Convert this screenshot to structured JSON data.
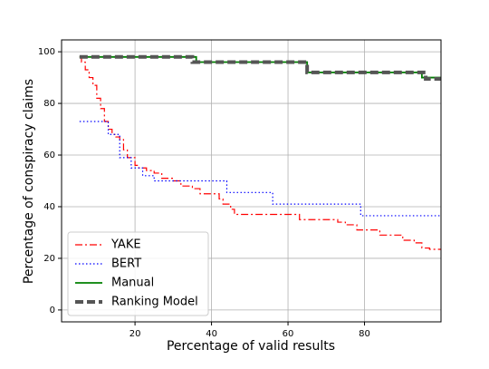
{
  "chart_data": {
    "type": "line",
    "step": true,
    "xlabel": "Percentage of valid results",
    "ylabel": "Percentage of conspiracy claims",
    "xlim": [
      0.8,
      100
    ],
    "ylim": [
      -4.6,
      104.6
    ],
    "xticks": [
      20,
      40,
      60,
      80
    ],
    "yticks": [
      0,
      20,
      40,
      60,
      80,
      100
    ],
    "grid": true,
    "legend": "lower left",
    "series": [
      {
        "name": "YAKE",
        "color": "#ff0000",
        "style": "dashdot",
        "width": 1.2,
        "x": [
          5.5,
          6,
          7,
          8,
          9,
          10,
          11,
          12,
          13,
          14,
          15,
          16,
          17,
          18,
          20,
          21,
          23,
          25,
          27,
          30,
          32,
          35,
          37,
          42,
          43,
          45,
          46,
          63,
          73,
          75,
          78,
          84,
          90,
          93,
          95,
          97,
          100
        ],
        "values": [
          98,
          96,
          93,
          90,
          87,
          82,
          78,
          73,
          70,
          68,
          67,
          66,
          62,
          59,
          56,
          55,
          54,
          53,
          51,
          50,
          48,
          47,
          45,
          43,
          41,
          39,
          37,
          35,
          34,
          33,
          31,
          29,
          27,
          26,
          24,
          23.5,
          23.5
        ]
      },
      {
        "name": "BERT",
        "color": "#0000ff",
        "style": "dotted",
        "width": 1.2,
        "x": [
          5.5,
          13,
          16,
          19,
          22,
          25,
          36,
          44,
          56,
          79,
          100
        ],
        "values": [
          73,
          68,
          59,
          55,
          52,
          50,
          50,
          45.5,
          41,
          36.5,
          36.5
        ]
      },
      {
        "name": "Manual",
        "color": "#008000",
        "style": "solid",
        "width": 1.8,
        "x": [
          5.5,
          36,
          65,
          95,
          100
        ],
        "values": [
          98,
          96,
          92,
          90,
          90
        ]
      },
      {
        "name": "Ranking Model",
        "color": "#555555",
        "style": "dashed",
        "width": 4,
        "x": [
          5.5,
          35,
          64,
          65,
          93,
          96,
          100
        ],
        "values": [
          98,
          96,
          96,
          92,
          92,
          89.5,
          89.5
        ]
      }
    ]
  }
}
